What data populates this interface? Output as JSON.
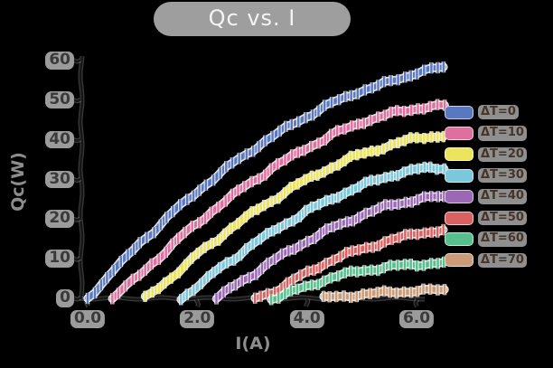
{
  "title": "Qc vs. I",
  "axes": {
    "xlabel": "I(A)",
    "ylabel": "Qc(W)"
  },
  "chart_data": {
    "type": "line",
    "style": "hand-drawn (xkcd-like) curves with dense vertical error bars, black background, white sketch halos",
    "title": "Qc vs. I",
    "xlabel": "I(A)",
    "ylabel": "Qc(W)",
    "xlim": [
      0,
      6.6
    ],
    "ylim": [
      0,
      60
    ],
    "grid": false,
    "legend_position": "right",
    "yerr": 1.4,
    "xtick_values": [
      0,
      2,
      4,
      6
    ],
    "xtick_labels": [
      "0.0",
      "2.0",
      "4.0",
      "6.0"
    ],
    "ytick_values": [
      0,
      10,
      20,
      30,
      40,
      50,
      60
    ],
    "ytick_labels": [
      "0",
      "10",
      "20",
      "30",
      "40",
      "50",
      "60"
    ],
    "series": [
      {
        "name": "ΔT=0",
        "color": "#5a78bf",
        "x": [
          0,
          0.5,
          1,
          1.5,
          2,
          2.5,
          3,
          3.5,
          4,
          4.5,
          5,
          5.5,
          6,
          6.3,
          6.5
        ],
        "y": [
          0,
          7.5,
          14.5,
          21,
          27,
          32.5,
          37.5,
          42,
          46,
          49.5,
          52.5,
          54.5,
          57,
          58,
          58
        ]
      },
      {
        "name": "ΔT=10",
        "color": "#de6f9e",
        "x": [
          0.45,
          1,
          1.5,
          2,
          2.5,
          3,
          3.5,
          4,
          4.5,
          5,
          5.5,
          6,
          6.3,
          6.5
        ],
        "y": [
          0,
          6.5,
          13,
          19,
          24.5,
          29.5,
          34,
          38,
          41.5,
          44.5,
          46.5,
          48,
          48.5,
          48.5
        ]
      },
      {
        "name": "ΔT=20",
        "color": "#ece45f",
        "x": [
          1.05,
          1.5,
          2,
          2.5,
          3,
          3.5,
          4,
          4.5,
          5,
          5.5,
          6,
          6.3,
          6.5
        ],
        "y": [
          0,
          5,
          11,
          16.5,
          21.5,
          26,
          30,
          33.5,
          36.5,
          38.5,
          40.5,
          41,
          41
        ]
      },
      {
        "name": "ΔT=30",
        "color": "#7cc7db",
        "x": [
          1.7,
          2,
          2.5,
          3,
          3.5,
          4,
          4.5,
          5,
          5.5,
          6,
          6.3,
          6.5
        ],
        "y": [
          0,
          3,
          8.5,
          13.5,
          18,
          22,
          25.5,
          28.5,
          31,
          32.5,
          33,
          33
        ]
      },
      {
        "name": "ΔT=40",
        "color": "#9a68b4",
        "x": [
          2.35,
          2.5,
          3,
          3.5,
          4,
          4.5,
          5,
          5.5,
          6,
          6.3,
          6.5
        ],
        "y": [
          0,
          1.5,
          6,
          10.5,
          14.5,
          18,
          21,
          23.5,
          25,
          25.5,
          25.5
        ]
      },
      {
        "name": "ΔT=50",
        "color": "#d96161",
        "x": [
          3.05,
          3.5,
          4,
          4.5,
          5,
          5.5,
          6,
          6.3,
          6.5
        ],
        "y": [
          0,
          2.5,
          6.5,
          10,
          12.5,
          14.5,
          16.5,
          17,
          17
        ]
      },
      {
        "name": "ΔT=60",
        "color": "#57bf8e",
        "x": [
          3.35,
          3.5,
          4,
          4.5,
          5,
          5.5,
          6,
          6.3,
          6.5
        ],
        "y": [
          0,
          0.5,
          3,
          5.5,
          7,
          8,
          8.5,
          9,
          9
        ]
      },
      {
        "name": "ΔT=70",
        "color": "#cb9a76",
        "x": [
          4.3,
          4.5,
          5,
          5.5,
          6,
          6.3,
          6.5
        ],
        "y": [
          0,
          0.3,
          1,
          1.5,
          2,
          2,
          2
        ]
      }
    ]
  }
}
